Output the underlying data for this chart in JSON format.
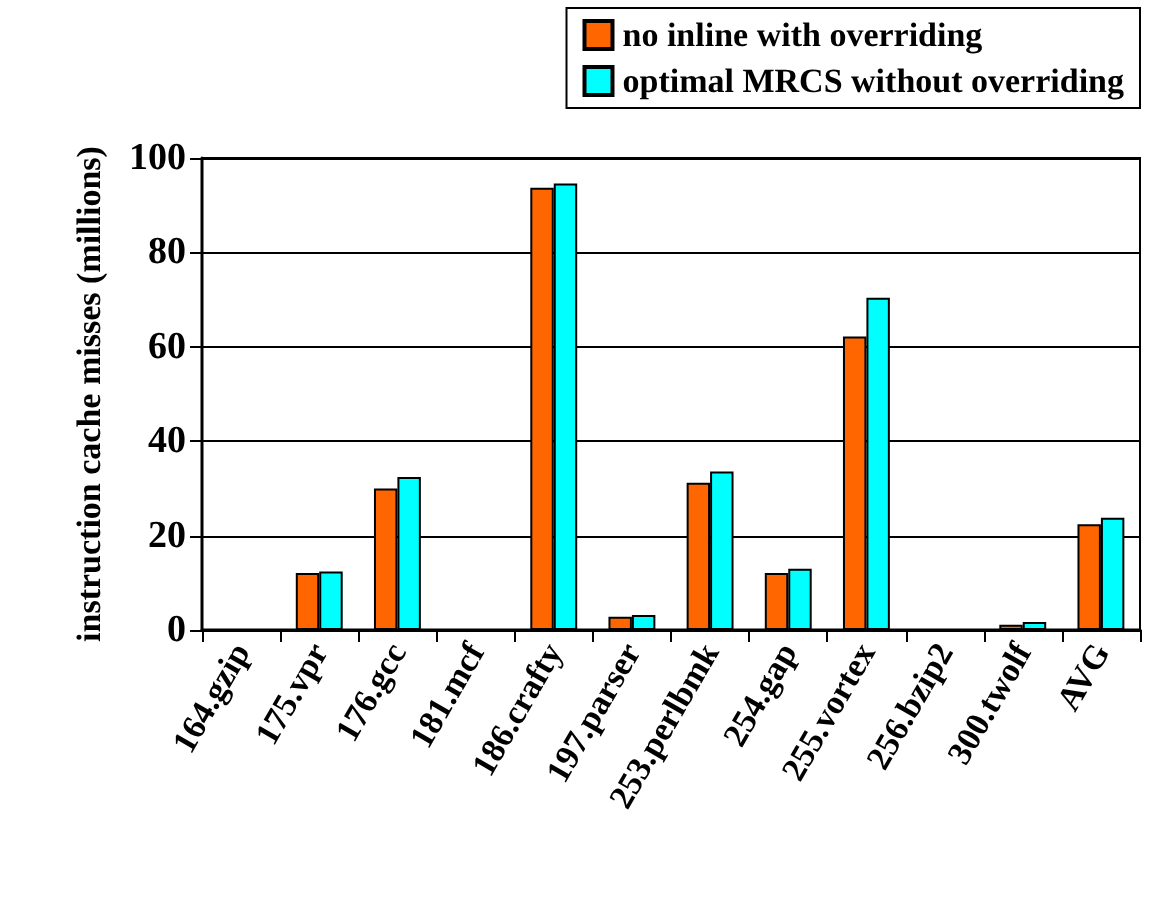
{
  "chart_data": {
    "type": "bar",
    "ylabel": "instruction cache misses (millions)",
    "categories": [
      "164.gzip",
      "175.vpr",
      "176.gcc",
      "181.mcf",
      "186.crafty",
      "197.parser",
      "253.perlbmk",
      "254.gap",
      "255.vortex",
      "256.bzip2",
      "300.twolf",
      "AVG"
    ],
    "series": [
      {
        "name": "no inline with overriding",
        "color": "#ff6600",
        "values": [
          0,
          12.1,
          30.0,
          0,
          93.7,
          2.8,
          31.2,
          12.1,
          62.2,
          0,
          1.1,
          22.4
        ]
      },
      {
        "name": "optimal MRCS without overriding",
        "color": "#00ffff",
        "values": [
          0,
          12.4,
          32.4,
          0,
          94.6,
          3.2,
          33.6,
          13.0,
          70.4,
          0,
          1.7,
          23.8
        ]
      }
    ],
    "ylim": [
      0,
      100
    ],
    "yticks": [
      0,
      20,
      40,
      60,
      80,
      100
    ],
    "grid": "y",
    "legend": "top right"
  }
}
